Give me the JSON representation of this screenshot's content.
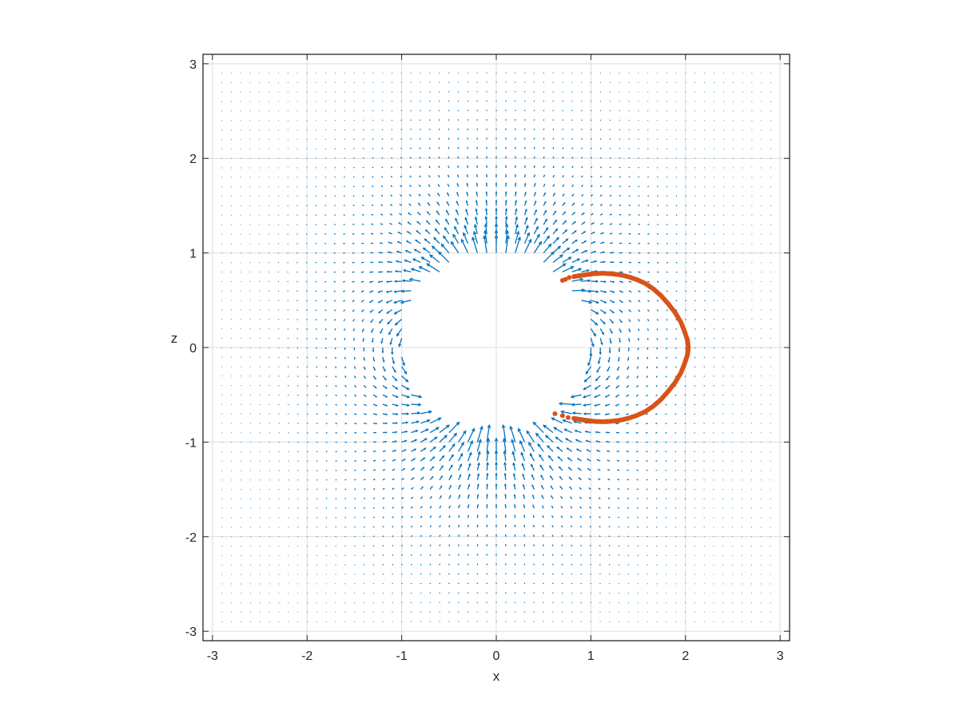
{
  "chart_data": {
    "type": "quiver",
    "title": "",
    "xlabel": "x",
    "ylabel": "z",
    "xlim": [
      -3.1,
      3.1
    ],
    "ylim": [
      -3.1,
      3.1
    ],
    "xticks": [
      "-3",
      "-2",
      "-1",
      "0",
      "1",
      "2",
      "3"
    ],
    "yticks": [
      "-3",
      "-2",
      "-1",
      "0",
      "1",
      "2",
      "3"
    ],
    "grid": true,
    "vector_field": {
      "description_of_field": "dipole field vectors on a regular grid, excluded inside the unit circle",
      "grid_min": -2.9,
      "grid_max": 2.9,
      "grid_step": 0.1,
      "excluded_radius": 1.0,
      "color": "#0072BD"
    },
    "scatter_series": {
      "color": "#D95319",
      "points": [
        [
          0.7,
          0.71
        ],
        [
          0.73,
          0.72
        ],
        [
          0.77,
          0.74
        ],
        [
          0.82,
          0.75
        ],
        [
          0.88,
          0.76
        ],
        [
          0.95,
          0.77
        ],
        [
          1.03,
          0.78
        ],
        [
          1.12,
          0.785
        ],
        [
          1.21,
          0.78
        ],
        [
          1.3,
          0.77
        ],
        [
          1.39,
          0.75
        ],
        [
          1.48,
          0.72
        ],
        [
          1.57,
          0.68
        ],
        [
          1.66,
          0.62
        ],
        [
          1.74,
          0.55
        ],
        [
          1.82,
          0.46
        ],
        [
          1.89,
          0.37
        ],
        [
          1.95,
          0.27
        ],
        [
          1.99,
          0.17
        ],
        [
          2.02,
          0.08
        ],
        [
          2.03,
          0.0
        ],
        [
          2.02,
          -0.08
        ],
        [
          1.99,
          -0.17
        ],
        [
          1.95,
          -0.27
        ],
        [
          1.89,
          -0.37
        ],
        [
          1.82,
          -0.46
        ],
        [
          1.74,
          -0.55
        ],
        [
          1.66,
          -0.62
        ],
        [
          1.57,
          -0.68
        ],
        [
          1.48,
          -0.72
        ],
        [
          1.39,
          -0.75
        ],
        [
          1.3,
          -0.77
        ],
        [
          1.21,
          -0.78
        ],
        [
          1.12,
          -0.785
        ],
        [
          1.03,
          -0.78
        ],
        [
          0.95,
          -0.77
        ],
        [
          0.88,
          -0.76
        ],
        [
          0.82,
          -0.75
        ],
        [
          0.76,
          -0.74
        ],
        [
          0.7,
          -0.72
        ],
        [
          0.62,
          -0.7
        ]
      ]
    }
  }
}
